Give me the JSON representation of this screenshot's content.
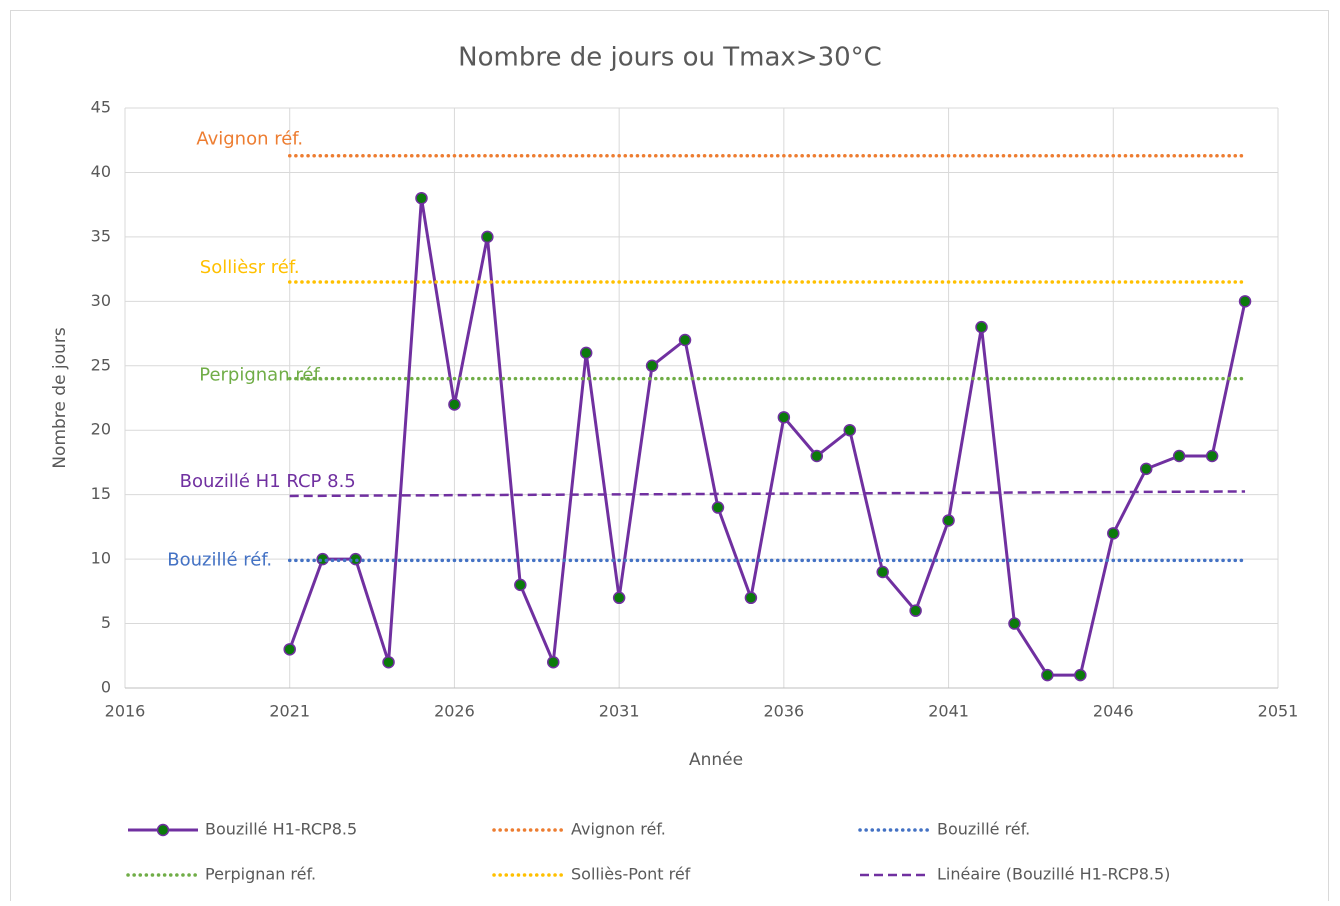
{
  "chart_data": {
    "type": "line",
    "title": "Nombre de jours ou Tmax>30°C",
    "xlabel": "Année",
    "ylabel": "Nombre de jours",
    "xlim": [
      2016,
      2051
    ],
    "xticks": [
      2016,
      2021,
      2026,
      2031,
      2036,
      2041,
      2046,
      2051
    ],
    "ylim": [
      0,
      45
    ],
    "yticks": [
      0,
      5,
      10,
      15,
      20,
      25,
      30,
      35,
      40,
      45
    ],
    "grid": true,
    "legend": "bottom",
    "series": [
      {
        "name": "Bouzillé H1-RCP8.5",
        "color": "#7030a0",
        "style": "solid",
        "marker_color": "#0b7a0b",
        "x": [
          2021,
          2022,
          2023,
          2024,
          2025,
          2026,
          2027,
          2028,
          2029,
          2030,
          2031,
          2032,
          2033,
          2034,
          2035,
          2036,
          2037,
          2038,
          2039,
          2040,
          2041,
          2042,
          2043,
          2044,
          2045,
          2046,
          2047,
          2048,
          2049,
          2050
        ],
        "values": [
          3,
          10,
          10,
          2,
          38,
          22,
          35,
          8,
          2,
          26,
          7,
          25,
          27,
          14,
          7,
          21,
          18,
          20,
          9,
          6,
          13,
          28,
          5,
          1,
          1,
          12,
          17,
          18,
          18,
          30
        ]
      },
      {
        "name": "Avignon réf.",
        "label": "Avignon réf.",
        "color": "#ed7d31",
        "style": "dotted",
        "x": [
          2021,
          2050
        ],
        "values": [
          41.3,
          41.3
        ]
      },
      {
        "name": "Bouzillé réf.",
        "label": "Bouzillé réf.",
        "color": "#4472c4",
        "style": "dotted",
        "x": [
          2021,
          2050
        ],
        "values": [
          9.9,
          9.9
        ]
      },
      {
        "name": "Perpignan réf.",
        "label": "Perpignan réf.",
        "color": "#70ad47",
        "style": "dotted",
        "x": [
          2021,
          2050
        ],
        "values": [
          24,
          24
        ]
      },
      {
        "name": "Solliès-Pont réf",
        "label": "Sollièsr réf.",
        "color": "#ffc000",
        "style": "dotted",
        "x": [
          2021,
          2050
        ],
        "values": [
          31.5,
          31.5
        ]
      },
      {
        "name": "Linéaire (Bouzillé H1-RCP8.5)",
        "label": "Bouzillé H1 RCP 8.5",
        "color": "#7030a0",
        "style": "dashed",
        "x": [
          2021,
          2050
        ],
        "values": [
          14.9,
          15.25
        ]
      }
    ]
  }
}
